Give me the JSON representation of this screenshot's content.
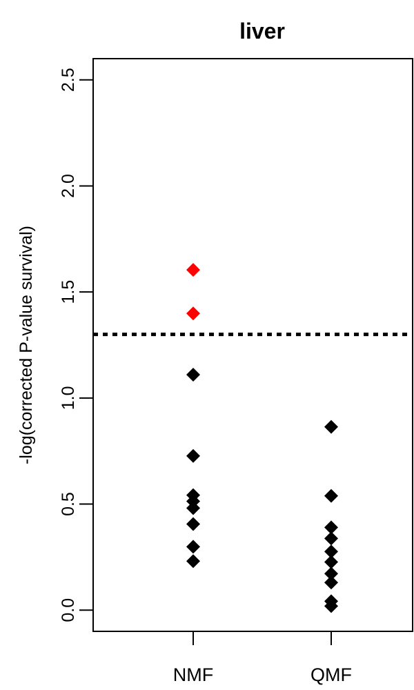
{
  "chart_data": {
    "type": "strip",
    "title": "liver",
    "ylabel": "-log(corrected P-value survival)",
    "categories": [
      "NMF",
      "QMF"
    ],
    "values": [
      [
        1.604,
        1.399,
        1.11,
        0.727,
        0.542,
        0.513,
        0.481,
        0.406,
        0.299,
        0.231
      ],
      [
        0.864,
        0.539,
        0.39,
        0.338,
        0.276,
        0.227,
        0.172,
        0.13,
        0.042,
        0.019
      ]
    ],
    "color": "#000000",
    "color_above": "#ff0000",
    "threshold": 1.3,
    "ylim": [
      -0.1,
      2.6
    ],
    "yticks": [
      {
        "value": 0,
        "label": "0.0"
      },
      0.5,
      {
        "value": 1,
        "label": "1.0"
      },
      1.5,
      {
        "value": 2,
        "label": "2.0"
      },
      2.5
    ]
  }
}
